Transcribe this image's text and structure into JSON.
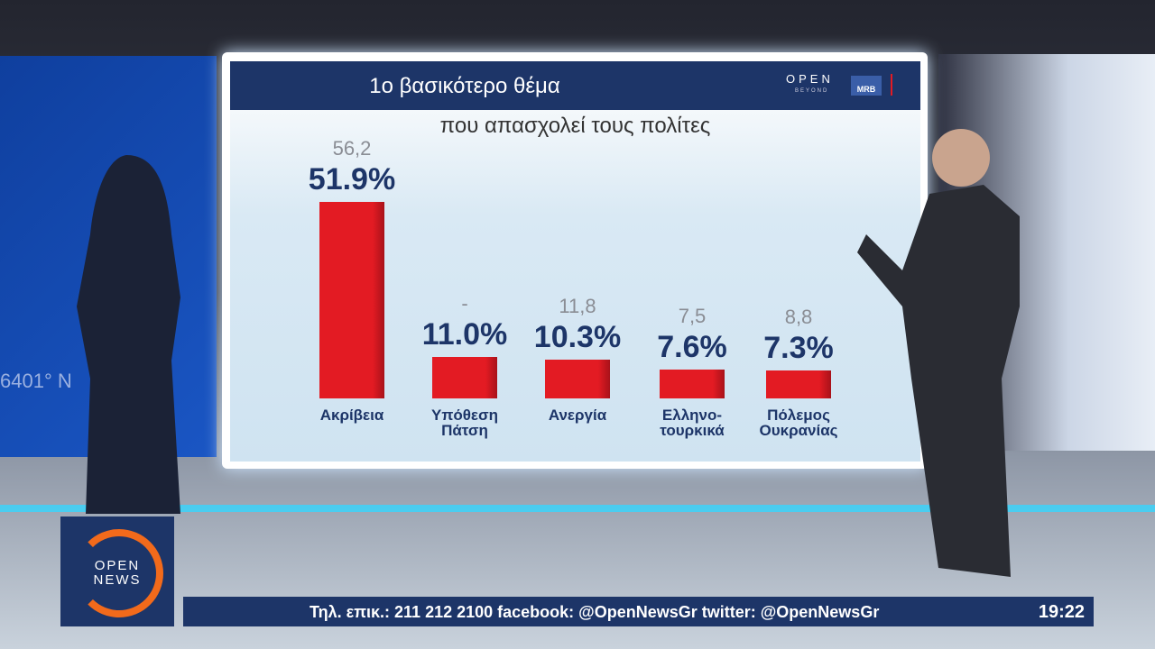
{
  "chart_data": {
    "type": "bar",
    "title": "1ο βασικότερο θέμα",
    "subtitle": "που απασχολεί τους πολίτες",
    "categories": [
      "Ακρίβεια",
      "Υπόθεση Πάτση",
      "Ανεργία",
      "Ελληνο-τουρκικά",
      "Πόλεμος Ουκρανίας"
    ],
    "values": [
      51.9,
      11.0,
      10.3,
      7.6,
      7.3
    ],
    "value_labels": [
      "51.9%",
      "11.0%",
      "10.3%",
      "7.6%",
      "7.3%"
    ],
    "previous": {
      "values": [
        56.2,
        null,
        11.8,
        7.5,
        8.8
      ],
      "value_labels": [
        "56,2",
        "-",
        "11,8",
        "7,5",
        "8,8"
      ]
    },
    "color": "#e31b23"
  },
  "screen_logos": {
    "open": "OPEN",
    "beyond": "BEYOND",
    "mrb": "MRB"
  },
  "wall_text": "6401° N",
  "channel_logo": {
    "line1": "OPEN",
    "line2": "NEWS"
  },
  "ticker": {
    "text": "Τηλ. επικ.: 211 212 2100 facebook: @OpenNewsGr twitter: @OpenNewsGr",
    "time": "19:22"
  }
}
